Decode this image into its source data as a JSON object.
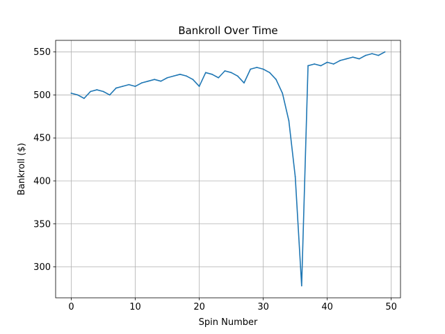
{
  "chart_data": {
    "type": "line",
    "title": "Bankroll Over Time",
    "xlabel": "Spin Number",
    "ylabel": "Bankroll ($)",
    "xlim": [
      -2.45,
      51.45
    ],
    "ylim": [
      264,
      563.5
    ],
    "xticks": [
      0,
      10,
      20,
      30,
      40,
      50
    ],
    "yticks": [
      300,
      350,
      400,
      450,
      500,
      550
    ],
    "grid": true,
    "line_color": "#1f77b4",
    "series": [
      {
        "x": [
          0,
          1,
          2,
          3,
          4,
          5,
          6,
          7,
          8,
          9,
          10,
          11,
          12,
          13,
          14,
          15,
          16,
          17,
          18,
          19,
          20,
          21,
          22,
          23,
          24,
          25,
          26,
          27,
          28,
          29,
          30,
          31,
          32,
          33,
          34,
          35,
          36,
          37,
          38,
          39,
          40,
          41,
          42,
          43,
          44,
          45,
          46,
          47,
          48,
          49
        ],
        "values": [
          502,
          500,
          496,
          504,
          506,
          504,
          500,
          508,
          510,
          512,
          510,
          514,
          516,
          518,
          516,
          520,
          522,
          524,
          522,
          518,
          510,
          526,
          524,
          520,
          528,
          526,
          522,
          514,
          530,
          532,
          530,
          526,
          518,
          502,
          470,
          405,
          278,
          534,
          536,
          534,
          538,
          536,
          540,
          542,
          544,
          542,
          546,
          548,
          546,
          550
        ]
      }
    ]
  }
}
